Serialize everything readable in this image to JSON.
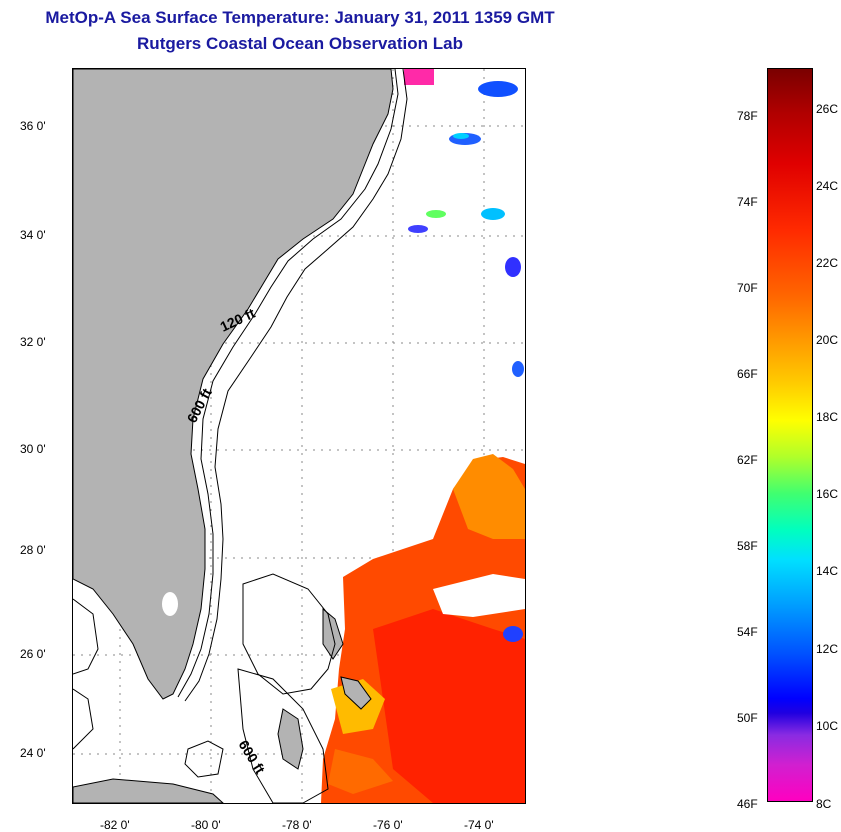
{
  "header": {
    "title": "MetOp-A Sea Surface Temperature:  January 31, 2011 1359 GMT",
    "subtitle": "Rutgers Coastal Ocean Observation Lab"
  },
  "map": {
    "lat_labels": [
      "36 0'",
      "34 0'",
      "32 0'",
      "30 0'",
      "28 0'",
      "26 0'",
      "24 0'"
    ],
    "lon_labels": [
      "-82 0'",
      "-80 0'",
      "-78 0'",
      "-76 0'",
      "-74 0'"
    ],
    "contour_labels": [
      "120 ft",
      "600 ft",
      "600 ft"
    ],
    "colors": {
      "land": "#b3b3b3",
      "ocean_cloud": "#ffffff"
    }
  },
  "colorbar": {
    "fahrenheit_labels": [
      "78F",
      "74F",
      "70F",
      "66F",
      "62F",
      "58F",
      "54F",
      "50F",
      "46F"
    ],
    "celsius_labels": [
      "26C",
      "24C",
      "22C",
      "20C",
      "18C",
      "16C",
      "14C",
      "12C",
      "10C",
      "8C"
    ]
  }
}
